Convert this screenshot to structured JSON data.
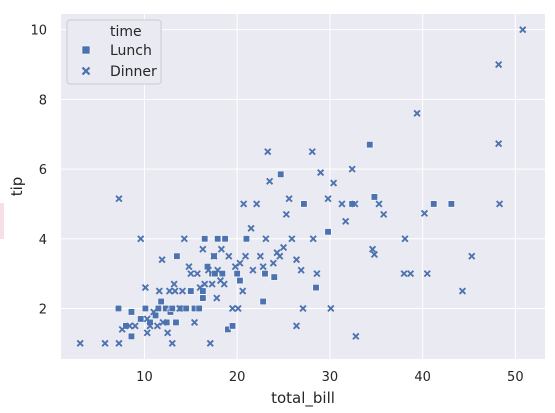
{
  "chart_data": {
    "type": "scatter",
    "xlabel": "total_bill",
    "ylabel": "tip",
    "xlim": [
      1.0,
      53.2
    ],
    "ylim": [
      0.55,
      10.45
    ],
    "x_ticks": [
      10,
      20,
      30,
      40,
      50
    ],
    "y_ticks": [
      2,
      4,
      6,
      8,
      10
    ],
    "grid": true,
    "legend": {
      "title": "time",
      "placement": "top-left"
    },
    "colors": {
      "background": "#eaeaf2",
      "grid": "#ffffff",
      "marker": "#4c72b0",
      "text": "#262626"
    },
    "series": [
      {
        "name": "Lunch",
        "marker": "square",
        "points": [
          [
            7.2,
            2.0
          ],
          [
            8.0,
            1.5
          ],
          [
            8.6,
            1.9
          ],
          [
            8.6,
            1.2
          ],
          [
            9.6,
            1.7
          ],
          [
            10.1,
            2.0
          ],
          [
            10.6,
            1.6
          ],
          [
            11.2,
            1.8
          ],
          [
            11.5,
            2.0
          ],
          [
            11.8,
            2.2
          ],
          [
            12.3,
            2.0
          ],
          [
            12.4,
            1.6
          ],
          [
            12.8,
            1.9
          ],
          [
            13.0,
            2.0
          ],
          [
            13.4,
            1.6
          ],
          [
            13.5,
            3.5
          ],
          [
            13.9,
            2.0
          ],
          [
            14.5,
            2.0
          ],
          [
            15.0,
            2.5
          ],
          [
            15.4,
            2.0
          ],
          [
            15.9,
            2.0
          ],
          [
            16.3,
            2.5
          ],
          [
            16.3,
            2.3
          ],
          [
            16.5,
            4.0
          ],
          [
            16.8,
            3.2
          ],
          [
            17.3,
            3.0
          ],
          [
            17.5,
            3.5
          ],
          [
            17.6,
            3.0
          ],
          [
            17.9,
            4.0
          ],
          [
            18.4,
            3.0
          ],
          [
            18.7,
            4.0
          ],
          [
            19.0,
            1.4
          ],
          [
            19.5,
            1.5
          ],
          [
            20.0,
            3.0
          ],
          [
            20.3,
            2.8
          ],
          [
            21.0,
            4.0
          ],
          [
            22.8,
            2.2
          ],
          [
            23.0,
            3.0
          ],
          [
            24.0,
            2.9
          ],
          [
            24.7,
            5.85
          ],
          [
            27.2,
            5.0
          ],
          [
            28.5,
            2.6
          ],
          [
            29.8,
            4.2
          ],
          [
            32.4,
            5.0
          ],
          [
            34.3,
            6.7
          ],
          [
            34.8,
            5.2
          ],
          [
            41.2,
            5.0
          ],
          [
            43.1,
            5.0
          ]
        ]
      },
      {
        "name": "Dinner",
        "marker": "x",
        "points": [
          [
            3.07,
            1.0
          ],
          [
            5.75,
            1.0
          ],
          [
            7.25,
            1.0
          ],
          [
            7.25,
            5.15
          ],
          [
            7.6,
            1.4
          ],
          [
            8.4,
            1.5
          ],
          [
            9.0,
            1.5
          ],
          [
            9.6,
            4.0
          ],
          [
            10.1,
            2.6
          ],
          [
            10.3,
            1.7
          ],
          [
            10.3,
            1.3
          ],
          [
            10.6,
            1.5
          ],
          [
            11.0,
            1.9
          ],
          [
            11.4,
            1.5
          ],
          [
            11.6,
            2.5
          ],
          [
            11.9,
            3.4
          ],
          [
            12.0,
            1.6
          ],
          [
            12.5,
            1.3
          ],
          [
            12.7,
            2.5
          ],
          [
            13.0,
            1.0
          ],
          [
            13.2,
            2.7
          ],
          [
            13.3,
            2.5
          ],
          [
            13.8,
            2.0
          ],
          [
            14.1,
            2.5
          ],
          [
            14.3,
            4.0
          ],
          [
            14.8,
            3.2
          ],
          [
            15.0,
            3.0
          ],
          [
            15.4,
            1.6
          ],
          [
            15.7,
            3.0
          ],
          [
            16.0,
            2.6
          ],
          [
            16.3,
            3.7
          ],
          [
            16.5,
            2.7
          ],
          [
            16.9,
            3.1
          ],
          [
            17.1,
            1.0
          ],
          [
            17.3,
            2.7
          ],
          [
            17.5,
            3.5
          ],
          [
            17.8,
            2.3
          ],
          [
            17.9,
            3.1
          ],
          [
            18.2,
            2.8
          ],
          [
            18.3,
            3.7
          ],
          [
            18.6,
            2.7
          ],
          [
            19.1,
            3.5
          ],
          [
            19.5,
            2.0
          ],
          [
            19.8,
            3.2
          ],
          [
            20.1,
            2.0
          ],
          [
            20.3,
            3.3
          ],
          [
            20.6,
            2.5
          ],
          [
            20.7,
            5.0
          ],
          [
            20.9,
            3.5
          ],
          [
            21.5,
            4.3
          ],
          [
            21.7,
            3.1
          ],
          [
            22.1,
            5.0
          ],
          [
            22.5,
            3.5
          ],
          [
            22.8,
            3.2
          ],
          [
            23.1,
            4.0
          ],
          [
            23.3,
            6.5
          ],
          [
            23.5,
            5.65
          ],
          [
            23.9,
            3.3
          ],
          [
            24.3,
            3.6
          ],
          [
            24.6,
            3.5
          ],
          [
            25.0,
            3.75
          ],
          [
            25.3,
            4.7
          ],
          [
            25.6,
            5.15
          ],
          [
            25.9,
            4.0
          ],
          [
            26.4,
            3.4
          ],
          [
            26.4,
            1.5
          ],
          [
            26.9,
            3.1
          ],
          [
            27.1,
            2.0
          ],
          [
            28.1,
            6.5
          ],
          [
            28.2,
            4.0
          ],
          [
            28.6,
            3.0
          ],
          [
            29.0,
            5.9
          ],
          [
            29.8,
            5.15
          ],
          [
            30.1,
            2.0
          ],
          [
            30.4,
            5.6
          ],
          [
            31.3,
            5.0
          ],
          [
            31.7,
            4.5
          ],
          [
            32.4,
            6.0
          ],
          [
            32.7,
            5.0
          ],
          [
            32.8,
            1.2
          ],
          [
            34.6,
            3.7
          ],
          [
            34.8,
            3.55
          ],
          [
            35.3,
            5.0
          ],
          [
            35.8,
            4.7
          ],
          [
            38.0,
            3.0
          ],
          [
            38.1,
            4.0
          ],
          [
            38.7,
            3.0
          ],
          [
            39.4,
            7.6
          ],
          [
            40.2,
            4.73
          ],
          [
            40.5,
            3.0
          ],
          [
            44.3,
            2.5
          ],
          [
            45.3,
            3.5
          ],
          [
            48.2,
            6.73
          ],
          [
            48.2,
            9.0
          ],
          [
            48.3,
            5.0
          ],
          [
            50.8,
            10.0
          ]
        ]
      }
    ]
  }
}
